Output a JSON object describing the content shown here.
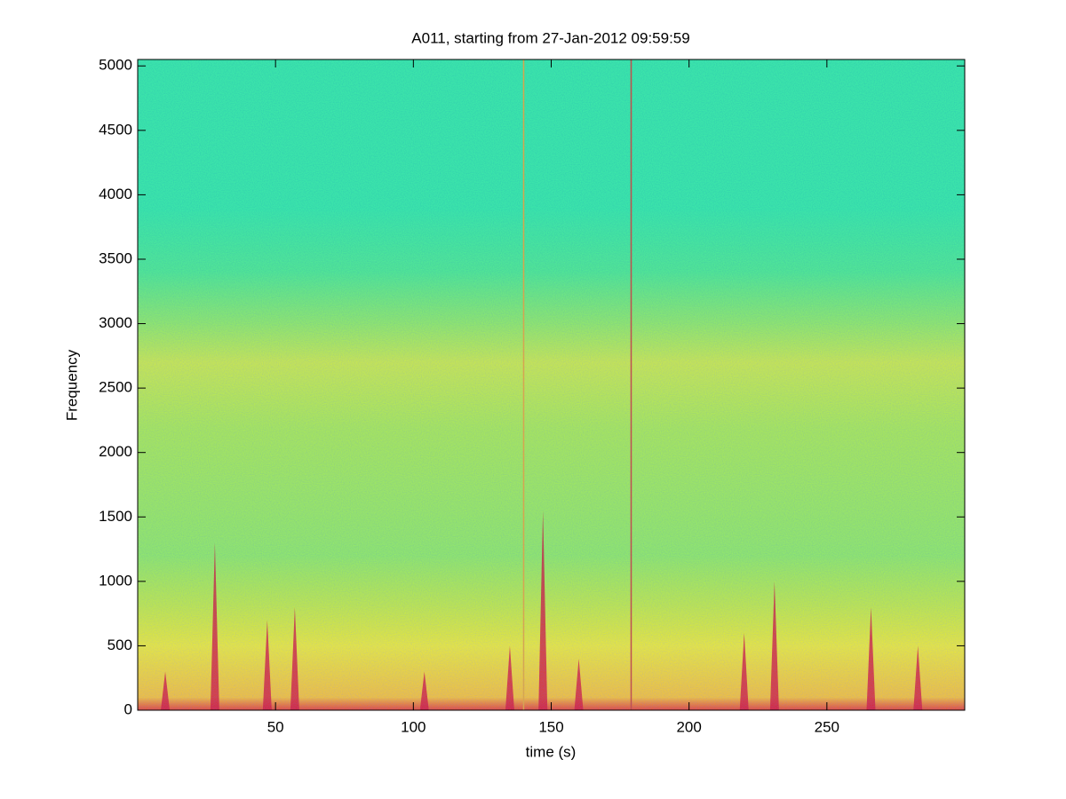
{
  "chart_data": {
    "type": "spectrogram",
    "title": "A011, starting from 27-Jan-2012 09:59:59",
    "xlabel": "time (s)",
    "ylabel": "Frequency",
    "xlim": [
      0,
      300
    ],
    "ylim": [
      0,
      5050
    ],
    "xticks": [
      50,
      100,
      150,
      200,
      250
    ],
    "yticks": [
      0,
      500,
      1000,
      1500,
      2000,
      2500,
      3000,
      3500,
      4000,
      4500,
      5000
    ],
    "freq_bins": [
      0,
      100,
      500,
      800,
      1200,
      2200,
      2700,
      3000,
      3400,
      3900,
      5050
    ],
    "band_colors": [
      "#e84a00",
      "#f8c800",
      "#f0f000",
      "#c8f030",
      "#98f060",
      "#b0f048",
      "#d0f038",
      "#98f060",
      "#58f090",
      "#40f0a8"
    ],
    "streaks": [
      {
        "x": 140,
        "color": "#e8b000"
      },
      {
        "x": 179,
        "color": "#d05000"
      }
    ],
    "bursts": {
      "color": "#d81000",
      "x": [
        10,
        28,
        47,
        57,
        104,
        135,
        147,
        160,
        220,
        231,
        266,
        283
      ],
      "top": [
        300,
        1300,
        700,
        800,
        300,
        500,
        1550,
        400,
        600,
        1000,
        800,
        500
      ]
    }
  }
}
